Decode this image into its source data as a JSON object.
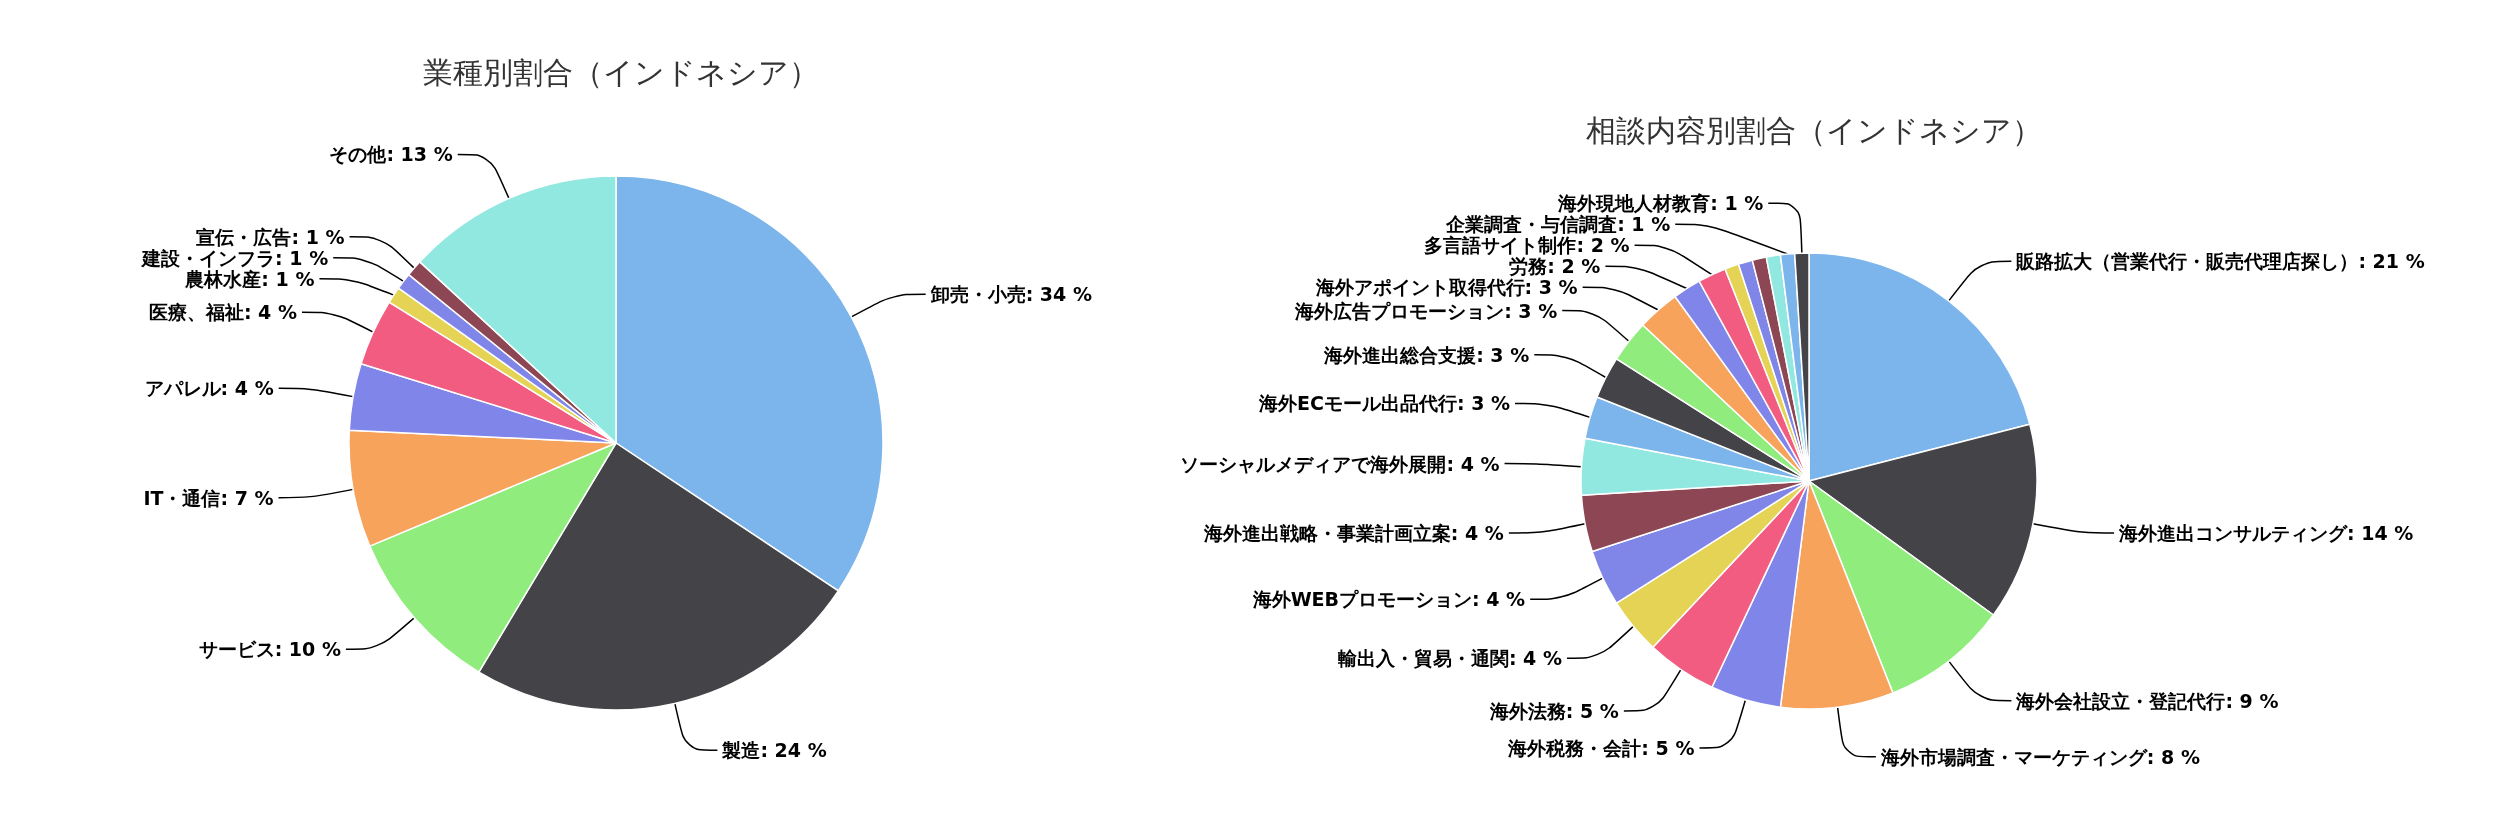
{
  "chart_data": [
    {
      "type": "pie",
      "title": "業種別割合（インドネシア）",
      "categories": [
        "卸売・小売",
        "製造",
        "サービス",
        "IT・通信",
        "アパレル",
        "医療、福祉",
        "農林水産",
        "建設・インフラ",
        "宣伝・広告",
        "その他"
      ],
      "values": [
        34,
        24,
        10,
        7,
        4,
        4,
        1,
        1,
        1,
        13
      ],
      "colors": [
        "#7cb5ec",
        "#434348",
        "#90ed7d",
        "#f7a35c",
        "#8085e9",
        "#f15c80",
        "#e4d354",
        "#8085e8",
        "#8d4653",
        "#91e8e1"
      ],
      "value_labels": [
        "34 %",
        "24 %",
        "10 %",
        "7 %",
        "4 %",
        "4 %",
        "1 %",
        "1 %",
        "1 %",
        "13 %"
      ]
    },
    {
      "type": "pie",
      "title": "相談内容別割合（インドネシア）",
      "categories": [
        "販路拡大（営業代行・販売代理店探し）",
        "海外進出コンサルティング",
        "海外会社設立・登記代行",
        "海外市場調査・マーケティング",
        "海外税務・会計",
        "海外法務",
        "輸出入・貿易・通関",
        "海外WEBプロモーション",
        "海外進出戦略・事業計画立案",
        "ソーシャルメディアで海外展開",
        "海外ECモール出品代行",
        "海外進出総合支援",
        "海外広告プロモーション",
        "海外アポイント取得代行",
        "労務",
        "多言語サイト制作",
        null,
        null,
        null,
        null,
        "企業調査・与信調査",
        "海外現地人材教育"
      ],
      "values": [
        21,
        14,
        9,
        8,
        5,
        5,
        4,
        4,
        4,
        4,
        3,
        3,
        3,
        3,
        2,
        2,
        1,
        1,
        1,
        1,
        1,
        1
      ],
      "colors": [
        "#7cb5ec",
        "#434348",
        "#90ed7d",
        "#f7a35c",
        "#8085e9",
        "#f15c80",
        "#e4d354",
        "#8085e8",
        "#8d4653",
        "#91e8e1",
        "#7cb5ec",
        "#434348",
        "#90ed7d",
        "#f7a35c",
        "#8085e9",
        "#f15c80",
        "#e4d354",
        "#8085e8",
        "#8d4653",
        "#91e8e1",
        "#7cb5ec",
        "#434348"
      ],
      "value_labels": [
        "21 %",
        "14 %",
        "9 %",
        "8 %",
        "5 %",
        "5 %",
        "4 %",
        "4 %",
        "4 %",
        "4 %",
        "3 %",
        "3 %",
        "3 %",
        "3 %",
        "2 %",
        "2 %",
        null,
        null,
        null,
        null,
        "1 %",
        "1 %"
      ]
    }
  ]
}
